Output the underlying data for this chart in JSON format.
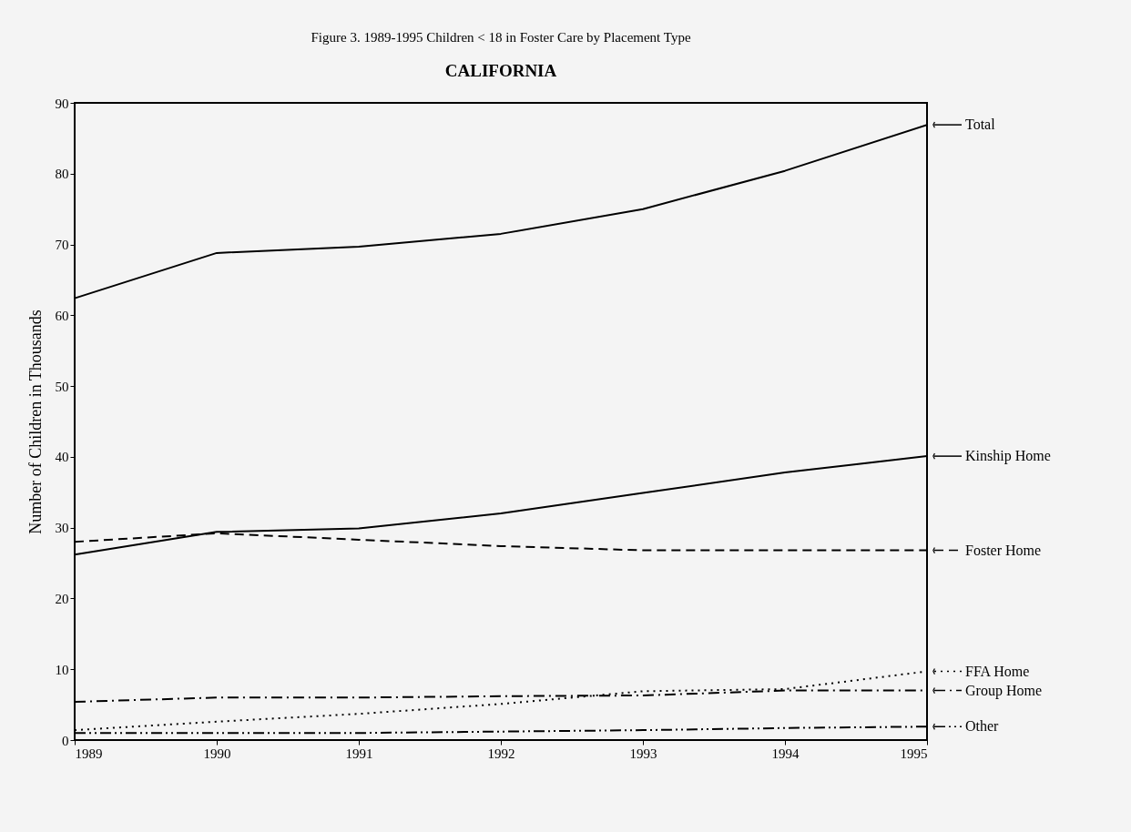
{
  "chart_data": {
    "type": "line",
    "title": "Figure 3.  1989-1995 Children < 18 in Foster Care by Placement Type",
    "subtitle": "CALIFORNIA",
    "ylabel": "Number of Children in Thousands",
    "x": [
      1989,
      1990,
      1991,
      1992,
      1993,
      1994,
      1995
    ],
    "xlim": [
      1989,
      1995
    ],
    "xticks": [
      1989,
      1990,
      1991,
      1992,
      1993,
      1994,
      1995
    ],
    "ylim": [
      0,
      90
    ],
    "yticks": [
      0,
      10,
      20,
      30,
      40,
      50,
      60,
      70,
      80,
      90
    ],
    "grid": false,
    "legend": "right",
    "marker": "none",
    "series": [
      {
        "name": "Total",
        "color": "#000000",
        "line_style": "solid",
        "values": [
          62.4,
          68.8,
          69.7,
          71.5,
          75,
          80.4,
          86.9
        ]
      },
      {
        "name": "Kinship Home",
        "color": "#000000",
        "line_style": "solid",
        "values": [
          26.2,
          29.4,
          29.9,
          32,
          34.9,
          37.8,
          40.1
        ]
      },
      {
        "name": "Foster Home",
        "color": "#000000",
        "line_style": "dashed",
        "values": [
          28,
          29.2,
          28.3,
          27.4,
          26.8,
          26.8,
          26.8
        ]
      },
      {
        "name": "FFA Home",
        "color": "#000000",
        "line_style": "dotted",
        "values": [
          1.4,
          2.6,
          3.7,
          5.1,
          6.9,
          7.2,
          9.7
        ]
      },
      {
        "name": "Group Home",
        "color": "#000000",
        "line_style": "dashdot",
        "values": [
          5.4,
          6,
          6,
          6.2,
          6.3,
          7,
          7
        ]
      },
      {
        "name": "Other",
        "color": "#000000",
        "line_style": "dashdotdot",
        "values": [
          1,
          1,
          1,
          1.2,
          1.4,
          1.7,
          1.9
        ]
      }
    ]
  }
}
